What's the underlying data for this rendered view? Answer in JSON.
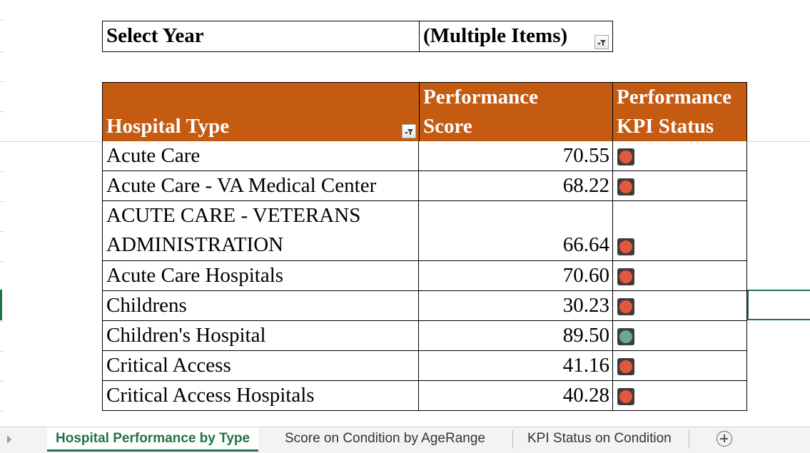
{
  "report_filter": {
    "label": "Select Year",
    "value": "(Multiple Items)",
    "dropdown_icon": "filter-dropdown-icon"
  },
  "pivot": {
    "headers": {
      "type": "Hospital Type",
      "score_line1": "Performance",
      "score_line2": "Score",
      "kpi_line1": "Performance",
      "kpi_line2": "KPI Status"
    },
    "header_color": "#c55a11",
    "status_colors": {
      "red": "#e2583b",
      "green": "#6aa98c"
    },
    "rows": [
      {
        "type": "Acute Care",
        "score": "70.55",
        "status": "red"
      },
      {
        "type": "Acute Care - VA Medical Center",
        "score": "68.22",
        "status": "red"
      },
      {
        "type_line1": "ACUTE CARE - VETERANS",
        "type_line2": "ADMINISTRATION",
        "score": "66.64",
        "status": "red"
      },
      {
        "type": "Acute Care Hospitals",
        "score": "70.60",
        "status": "red"
      },
      {
        "type": "Childrens",
        "score": "30.23",
        "status": "red"
      },
      {
        "type": "Children's Hospital",
        "score": "89.50",
        "status": "green"
      },
      {
        "type": "Critical Access",
        "score": "41.16",
        "status": "red"
      },
      {
        "type": "Critical Access Hospitals",
        "score": "40.28",
        "status": "red"
      }
    ]
  },
  "sheet_tabs": [
    {
      "label": "Hospital Performance by Type",
      "active": true
    },
    {
      "label": "Score on Condition by AgeRange",
      "active": false
    },
    {
      "label": "KPI Status on Condition",
      "active": false
    }
  ],
  "accent_color": "#217346"
}
